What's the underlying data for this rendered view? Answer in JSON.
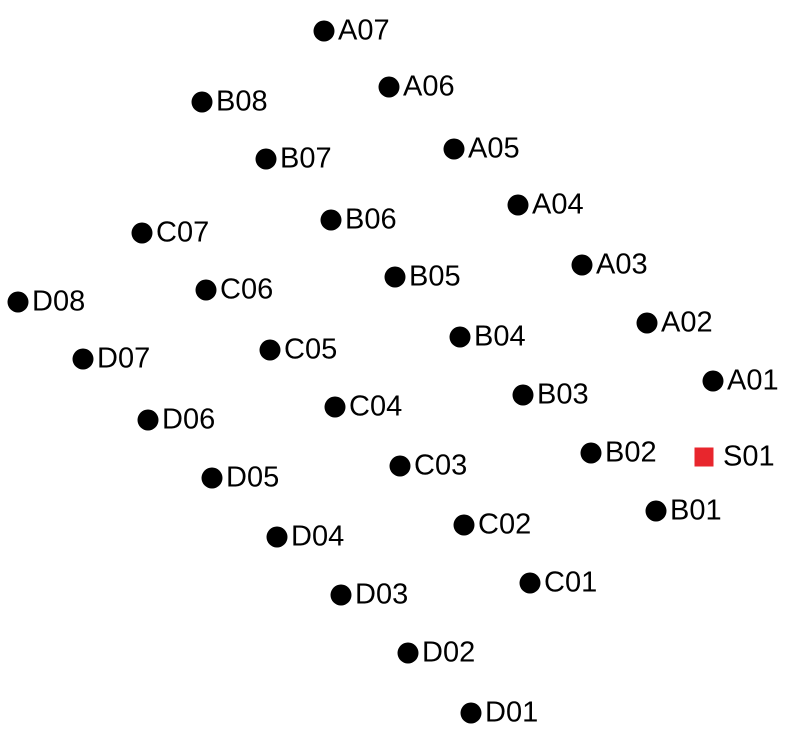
{
  "colors": {
    "background": "#ffffff",
    "node": "#000000",
    "source": "#e8262d",
    "text": "#000000"
  },
  "nodes": [
    {
      "id": "A01",
      "label": "A01",
      "kind": "circle",
      "group": "A"
    },
    {
      "id": "A02",
      "label": "A02",
      "kind": "circle",
      "group": "A"
    },
    {
      "id": "A03",
      "label": "A03",
      "kind": "circle",
      "group": "A"
    },
    {
      "id": "A04",
      "label": "A04",
      "kind": "circle",
      "group": "A"
    },
    {
      "id": "A05",
      "label": "A05",
      "kind": "circle",
      "group": "A"
    },
    {
      "id": "A06",
      "label": "A06",
      "kind": "circle",
      "group": "A"
    },
    {
      "id": "A07",
      "label": "A07",
      "kind": "circle",
      "group": "A"
    },
    {
      "id": "B01",
      "label": "B01",
      "kind": "circle",
      "group": "B"
    },
    {
      "id": "B02",
      "label": "B02",
      "kind": "circle",
      "group": "B"
    },
    {
      "id": "B03",
      "label": "B03",
      "kind": "circle",
      "group": "B"
    },
    {
      "id": "B04",
      "label": "B04",
      "kind": "circle",
      "group": "B"
    },
    {
      "id": "B05",
      "label": "B05",
      "kind": "circle",
      "group": "B"
    },
    {
      "id": "B06",
      "label": "B06",
      "kind": "circle",
      "group": "B"
    },
    {
      "id": "B07",
      "label": "B07",
      "kind": "circle",
      "group": "B"
    },
    {
      "id": "B08",
      "label": "B08",
      "kind": "circle",
      "group": "B"
    },
    {
      "id": "C01",
      "label": "C01",
      "kind": "circle",
      "group": "C"
    },
    {
      "id": "C02",
      "label": "C02",
      "kind": "circle",
      "group": "C"
    },
    {
      "id": "C03",
      "label": "C03",
      "kind": "circle",
      "group": "C"
    },
    {
      "id": "C04",
      "label": "C04",
      "kind": "circle",
      "group": "C"
    },
    {
      "id": "C05",
      "label": "C05",
      "kind": "circle",
      "group": "C"
    },
    {
      "id": "C06",
      "label": "C06",
      "kind": "circle",
      "group": "C"
    },
    {
      "id": "C07",
      "label": "C07",
      "kind": "circle",
      "group": "C"
    },
    {
      "id": "D01",
      "label": "D01",
      "kind": "circle",
      "group": "D"
    },
    {
      "id": "D02",
      "label": "D02",
      "kind": "circle",
      "group": "D"
    },
    {
      "id": "D03",
      "label": "D03",
      "kind": "circle",
      "group": "D"
    },
    {
      "id": "D04",
      "label": "D04",
      "kind": "circle",
      "group": "D"
    },
    {
      "id": "D05",
      "label": "D05",
      "kind": "circle",
      "group": "D"
    },
    {
      "id": "D06",
      "label": "D06",
      "kind": "circle",
      "group": "D"
    },
    {
      "id": "D07",
      "label": "D07",
      "kind": "circle",
      "group": "D"
    },
    {
      "id": "D08",
      "label": "D08",
      "kind": "circle",
      "group": "D"
    },
    {
      "id": "S01",
      "label": "S01",
      "kind": "square",
      "group": "S"
    }
  ]
}
